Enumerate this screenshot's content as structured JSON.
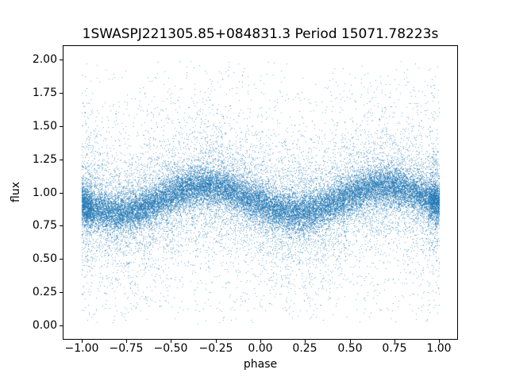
{
  "figure": {
    "background": "#ffffff",
    "spine_color": "#000000",
    "text_color": "#000000"
  },
  "chart_data": {
    "type": "scatter",
    "title": "1SWASPJ221305.85+084831.3 Period 15071.78223s",
    "xlabel": "phase",
    "ylabel": "flux",
    "xlim": [
      -1.1,
      1.1
    ],
    "ylim": [
      -0.1,
      2.1
    ],
    "x_tick_values": [
      -1.0,
      -0.75,
      -0.5,
      -0.25,
      0.0,
      0.25,
      0.5,
      0.75,
      1.0
    ],
    "x_tick_labels": [
      "−1.00",
      "−0.75",
      "−0.50",
      "−0.25",
      "0.00",
      "0.25",
      "0.50",
      "0.75",
      "1.00"
    ],
    "y_tick_values": [
      0.0,
      0.25,
      0.5,
      0.75,
      1.0,
      1.25,
      1.5,
      1.75,
      2.0
    ],
    "y_tick_labels": [
      "0.00",
      "0.25",
      "0.50",
      "0.75",
      "1.00",
      "1.25",
      "1.50",
      "1.75",
      "2.00"
    ],
    "grid": false,
    "legend": false,
    "marker_color": "#1f77b4",
    "marker_alpha": 0.6,
    "marker_size_px": 1,
    "n_points": 36000,
    "seed": 7,
    "model": {
      "description": "Folded light curve: flux centered on a sinusoid of the phase with heavy-tailed vertical scatter, clipped to roughly 0..2",
      "phase_range": [
        -1.0,
        1.0
      ],
      "mean_flux": 0.95,
      "amplitude": 0.1,
      "peak_phase": -0.3,
      "trough_phase": 0.2,
      "peak_flux": 1.05,
      "trough_flux": 0.85,
      "noise_components": [
        {
          "weight": 0.6,
          "sigma": 0.07
        },
        {
          "weight": 0.27,
          "sigma": 0.2
        },
        {
          "weight": 0.13,
          "sigma": 0.5
        }
      ],
      "flux_clip": [
        0.012,
        1.988
      ],
      "edge_extra_fraction": 0.045,
      "edge_strip_width": 0.06
    }
  }
}
